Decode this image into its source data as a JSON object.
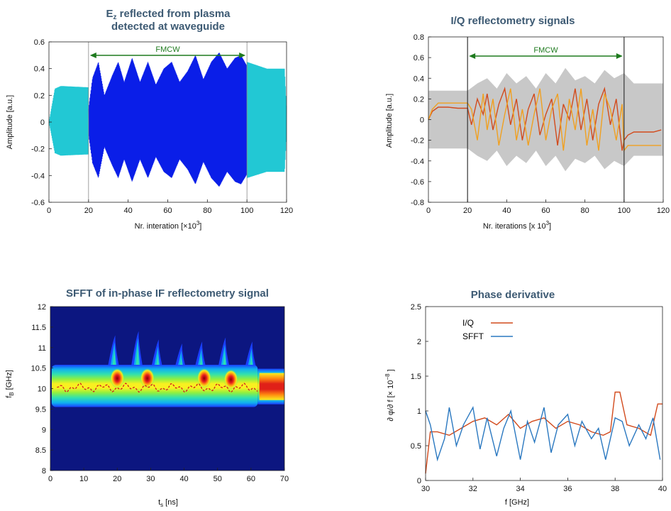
{
  "panels": {
    "ez": {
      "title_line1_main": "E",
      "title_line1_sub": "z",
      "title_line1_rest": " reflected from plasma",
      "title_line2": "detected at waveguide",
      "xlabel_main": "Nr. interation [×10",
      "xlabel_sup": "3",
      "xlabel_end": "]",
      "ylabel": "Amplitude [a.u.]",
      "annotation": "FMCW"
    },
    "iq": {
      "title": "I/Q reflectometry signals",
      "xlabel_main": "Nr. iterations [x 10",
      "xlabel_sup": "3",
      "xlabel_end": "]",
      "ylabel": "Amplitude [a.u.]",
      "annotation": "FMCW"
    },
    "sfft": {
      "title": "SFFT of in-phase IF reflectometry signal",
      "xlabel_main": "t",
      "xlabel_sub": "s",
      "xlabel_end": " [ns]",
      "ylabel_main": "f",
      "ylabel_sub": "B",
      "ylabel_end": " [GHz]"
    },
    "phase": {
      "title": "Phase derivative",
      "xlabel": "f [GHz]",
      "ylabel_main": "∂ φ/∂ f  [× 10",
      "ylabel_sup": "−8",
      "ylabel_end": " ]",
      "legend": [
        "I/Q",
        "SFFT"
      ]
    }
  },
  "colors": {
    "cyan": "#22c8d4",
    "blue": "#0a1ee8",
    "green_arrow": "#1e7a1e",
    "iq_red": "#d24a1c",
    "iq_orange": "#f0a020",
    "iq_gray": "#c8c8c8",
    "sfft_red": "#d24a1c",
    "sfft_blue": "#2a78c0",
    "heat_bg": "#0c1680",
    "title": "#3d5a73"
  },
  "chart_data": [
    {
      "type": "area",
      "title": "Ez reflected from plasma detected at waveguide",
      "xlabel": "Nr. interation [×10^3]",
      "ylabel": "Amplitude [a.u.]",
      "xlim": [
        0,
        120
      ],
      "ylim": [
        -0.6,
        0.6
      ],
      "xticks": [
        0,
        20,
        40,
        60,
        80,
        100,
        120
      ],
      "yticks": [
        -0.6,
        -0.4,
        -0.2,
        0,
        0.2,
        0.4,
        0.6
      ],
      "fmcw_range": [
        20,
        100
      ],
      "series": [
        {
          "name": "",
          "color": "cyan",
          "envelope": [
            [
              0,
              0
            ],
            [
              3,
              0.25
            ],
            [
              6,
              0.27
            ],
            [
              20,
              0.26
            ]
          ]
        },
        {
          "name": "",
          "color": "blue",
          "envelope": [
            [
              20,
              0.1
            ],
            [
              22,
              0.33
            ],
            [
              25,
              0.45
            ],
            [
              28,
              0.2
            ],
            [
              32,
              0.35
            ],
            [
              35,
              0.45
            ],
            [
              38,
              0.3
            ],
            [
              42,
              0.48
            ],
            [
              46,
              0.3
            ],
            [
              50,
              0.45
            ],
            [
              54,
              0.28
            ],
            [
              58,
              0.4
            ],
            [
              62,
              0.45
            ],
            [
              66,
              0.3
            ],
            [
              70,
              0.38
            ],
            [
              74,
              0.5
            ],
            [
              78,
              0.32
            ],
            [
              82,
              0.45
            ],
            [
              86,
              0.52
            ],
            [
              90,
              0.4
            ],
            [
              94,
              0.48
            ],
            [
              97,
              0.5
            ],
            [
              100,
              0.42
            ]
          ]
        },
        {
          "name": "",
          "color": "cyan",
          "envelope": [
            [
              100,
              0.45
            ],
            [
              110,
              0.4
            ],
            [
              119,
              0.4
            ],
            [
              120,
              0.1
            ]
          ]
        }
      ]
    },
    {
      "type": "line",
      "title": "I/Q reflectometry signals",
      "xlabel": "Nr. iterations [x 10^3]",
      "ylabel": "Amplitude [a.u.]",
      "xlim": [
        0,
        120
      ],
      "ylim": [
        -0.8,
        0.8
      ],
      "xticks": [
        0,
        20,
        40,
        60,
        80,
        100,
        120
      ],
      "yticks": [
        -0.8,
        -0.6,
        -0.4,
        -0.2,
        0,
        0.2,
        0.4,
        0.6,
        0.8
      ],
      "fmcw_range": [
        20,
        100
      ],
      "series": [
        {
          "name": "",
          "color": "iq_red",
          "x": [
            0,
            2,
            5,
            10,
            15,
            20,
            22,
            25,
            28,
            30,
            33,
            36,
            39,
            42,
            45,
            48,
            51,
            54,
            57,
            60,
            63,
            66,
            69,
            72,
            75,
            78,
            81,
            84,
            87,
            90,
            93,
            96,
            99,
            100,
            102,
            105,
            110,
            115,
            119
          ],
          "y": [
            0,
            0.08,
            0.12,
            0.12,
            0.11,
            0.11,
            -0.05,
            0.2,
            0.05,
            0.25,
            -0.1,
            0.15,
            0.3,
            -0.05,
            0.2,
            -0.2,
            0.1,
            0.25,
            -0.15,
            0.05,
            0.2,
            -0.25,
            0.15,
            0.0,
            0.3,
            -0.1,
            0.2,
            -0.2,
            0.15,
            0.3,
            -0.05,
            0.2,
            -0.3,
            -0.2,
            -0.15,
            -0.12,
            -0.12,
            -0.12,
            -0.1
          ]
        },
        {
          "name": "",
          "color": "iq_orange",
          "x": [
            0,
            2,
            5,
            10,
            15,
            20,
            22,
            25,
            28,
            30,
            33,
            36,
            39,
            42,
            45,
            48,
            51,
            54,
            57,
            60,
            63,
            66,
            69,
            72,
            75,
            78,
            81,
            84,
            87,
            90,
            93,
            96,
            99,
            100,
            102,
            105,
            110,
            115,
            119
          ],
          "y": [
            0,
            0.1,
            0.16,
            0.16,
            0.16,
            0.16,
            0.1,
            -0.2,
            0.25,
            -0.1,
            0.2,
            -0.25,
            0.05,
            0.3,
            -0.2,
            0.1,
            -0.25,
            0.05,
            0.3,
            -0.2,
            0.1,
            0.25,
            -0.3,
            0.2,
            -0.1,
            0.3,
            -0.25,
            0.1,
            -0.3,
            0.25,
            0.1,
            -0.2,
            0.15,
            -0.3,
            -0.25,
            -0.25,
            -0.25,
            -0.25,
            -0.25
          ]
        }
      ],
      "band": {
        "color": "iq_gray",
        "x": [
          0,
          5,
          20,
          25,
          30,
          35,
          40,
          45,
          50,
          55,
          60,
          65,
          70,
          75,
          80,
          85,
          90,
          95,
          100,
          105,
          110,
          115,
          120
        ],
        "upper": [
          0.28,
          0.28,
          0.28,
          0.35,
          0.4,
          0.3,
          0.45,
          0.35,
          0.42,
          0.3,
          0.45,
          0.35,
          0.5,
          0.38,
          0.42,
          0.35,
          0.48,
          0.4,
          0.45,
          0.35,
          0.35,
          0.35,
          0.35
        ],
        "lower": [
          -0.28,
          -0.28,
          -0.28,
          -0.35,
          -0.4,
          -0.3,
          -0.45,
          -0.35,
          -0.42,
          -0.3,
          -0.45,
          -0.35,
          -0.5,
          -0.38,
          -0.42,
          -0.35,
          -0.48,
          -0.4,
          -0.45,
          -0.35,
          -0.35,
          -0.35,
          -0.35
        ]
      }
    },
    {
      "type": "heatmap",
      "title": "SFFT of in-phase IF reflectometry signal",
      "xlabel": "ts [ns]",
      "ylabel": "fB [GHz]",
      "xlim": [
        0,
        70
      ],
      "ylim": [
        8,
        12
      ],
      "xticks": [
        0,
        10,
        20,
        30,
        40,
        50,
        60,
        70
      ],
      "yticks": [
        8,
        8.5,
        9,
        9.5,
        10,
        10.5,
        11,
        11.5,
        12
      ],
      "ridge_center": 10.05,
      "hot_spots": [
        [
          20,
          10.25
        ],
        [
          29,
          10.25
        ],
        [
          46,
          10.25
        ],
        [
          54,
          10.22
        ],
        [
          66,
          10.0
        ]
      ],
      "spikes": [
        [
          19,
          11.3
        ],
        [
          26,
          11.4
        ],
        [
          32,
          11.2
        ],
        [
          39,
          11.1
        ],
        [
          45,
          11.15
        ],
        [
          52,
          11.25
        ],
        [
          60,
          11.15
        ]
      ]
    },
    {
      "type": "line",
      "title": "Phase derivative",
      "xlabel": "f [GHz]",
      "ylabel": "∂φ/∂f [× 10^-8]",
      "xlim": [
        30,
        40
      ],
      "ylim": [
        0,
        2.5
      ],
      "xticks": [
        30,
        32,
        34,
        36,
        38,
        40
      ],
      "yticks": [
        0,
        0.5,
        1,
        1.5,
        2,
        2.5
      ],
      "legend_position": "top-left",
      "series": [
        {
          "name": "I/Q",
          "color": "iq_red",
          "x": [
            30,
            30.2,
            30.5,
            31,
            31.5,
            32,
            32.5,
            33,
            33.5,
            34,
            34.5,
            35,
            35.5,
            36,
            36.5,
            37,
            37.5,
            37.8,
            38,
            38.2,
            38.5,
            39,
            39.5,
            39.8,
            40
          ],
          "y": [
            0.1,
            0.7,
            0.7,
            0.65,
            0.75,
            0.85,
            0.9,
            0.8,
            0.95,
            0.75,
            0.85,
            0.9,
            0.75,
            0.85,
            0.8,
            0.7,
            0.65,
            0.7,
            1.27,
            1.27,
            0.8,
            0.75,
            0.65,
            1.1,
            1.1
          ]
        },
        {
          "name": "SFFT",
          "color": "sfft_blue",
          "x": [
            30,
            30.2,
            30.5,
            30.8,
            31,
            31.3,
            31.6,
            32,
            32.3,
            32.6,
            33,
            33.3,
            33.6,
            34,
            34.3,
            34.6,
            35,
            35.3,
            35.6,
            36,
            36.3,
            36.6,
            37,
            37.3,
            37.6,
            38,
            38.3,
            38.6,
            39,
            39.3,
            39.6,
            39.9
          ],
          "y": [
            1.0,
            0.8,
            0.3,
            0.6,
            1.05,
            0.5,
            0.8,
            1.05,
            0.45,
            0.9,
            0.35,
            0.75,
            1.0,
            0.3,
            0.85,
            0.55,
            1.05,
            0.4,
            0.8,
            0.95,
            0.5,
            0.85,
            0.6,
            0.75,
            0.3,
            0.9,
            0.85,
            0.5,
            0.8,
            0.6,
            0.9,
            0.3
          ]
        }
      ]
    }
  ]
}
